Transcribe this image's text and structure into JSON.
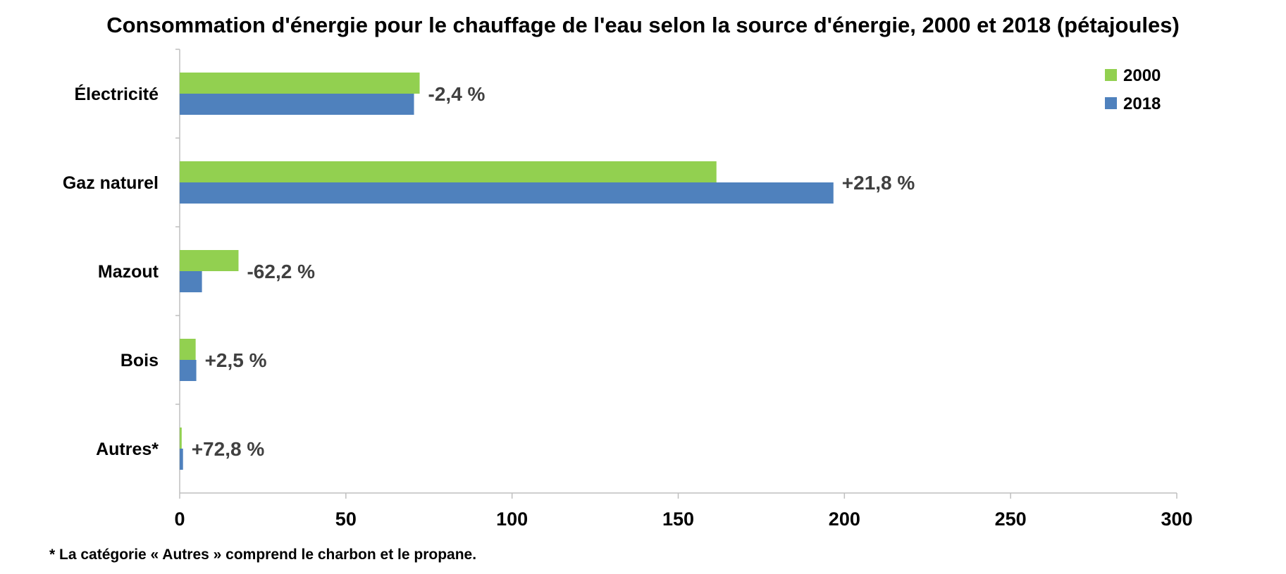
{
  "chart_data": {
    "type": "bar",
    "orientation": "horizontal",
    "title": "Consommation d'énergie pour le chauffage de l'eau selon la source d'énergie, 2000 et 2018 (pétajoules)",
    "categories": [
      "Électricité",
      "Gaz naturel",
      "Mazout",
      "Bois",
      "Autres*"
    ],
    "series": [
      {
        "name": "2000",
        "color": "#92d050",
        "values": [
          72.2,
          161.5,
          17.7,
          4.8,
          0.6
        ]
      },
      {
        "name": "2018",
        "color": "#4f81bd",
        "values": [
          70.5,
          196.7,
          6.7,
          5.0,
          1.0
        ]
      }
    ],
    "data_labels": [
      "-2,4 %",
      "+21,8 %",
      "-62,2 %",
      "+2,5 %",
      "+72,8 %"
    ],
    "xlim": [
      0,
      300
    ],
    "x_ticks": [
      0,
      50,
      100,
      150,
      200,
      250,
      300
    ],
    "xlabel": "",
    "ylabel": "",
    "grid": false,
    "legend_position": "top-right",
    "footnote": "* La catégorie « Autres » comprend le charbon et le propane."
  }
}
